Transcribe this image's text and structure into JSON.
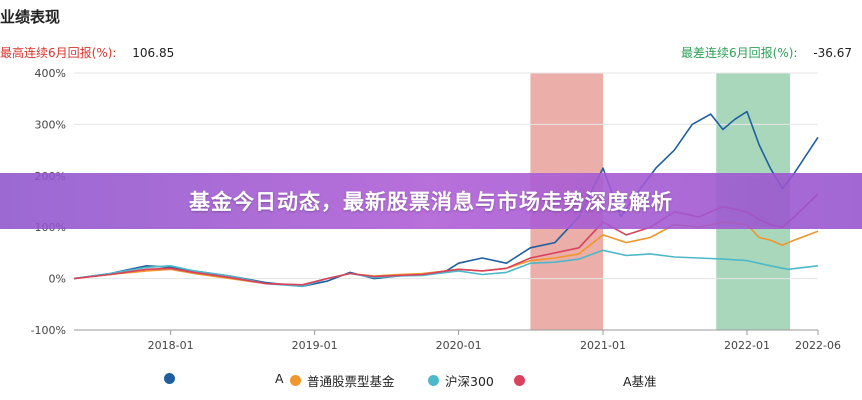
{
  "chart_data": {
    "type": "line",
    "title": "业绩表现",
    "ylim": [
      -100,
      400
    ],
    "y_ticks": [
      "400%",
      "300%",
      "200%",
      "100%",
      "0%",
      "-100%"
    ],
    "y_tick_values": [
      400,
      300,
      200,
      100,
      0,
      -100
    ],
    "x_ticks": [
      "2018-01",
      "2019-01",
      "2020-01",
      "2021-01",
      "2022-01",
      "2022-06"
    ],
    "x_tick_values": [
      "2018-01-01",
      "2019-01-01",
      "2020-01-01",
      "2021-01-01",
      "2022-01-01",
      "2022-06-30"
    ],
    "xlim": [
      "2017-05-01",
      "2022-06-30"
    ],
    "shaded_ranges": [
      {
        "from": "2020-07-01",
        "to": "2021-01-01",
        "color": "#e9a59e"
      },
      {
        "from": "2021-10-15",
        "to": "2022-04-20",
        "color": "#9fd3b5"
      }
    ],
    "grid": true,
    "legend_position": "bottom",
    "series": [
      {
        "name": "",
        "label_fragment": "A",
        "color": "#1f5fa0",
        "points": [
          [
            "2017-05-01",
            0
          ],
          [
            "2017-08-01",
            10
          ],
          [
            "2017-11-01",
            25
          ],
          [
            "2018-01-01",
            22
          ],
          [
            "2018-03-01",
            15
          ],
          [
            "2018-06-01",
            5
          ],
          [
            "2018-09-01",
            -8
          ],
          [
            "2018-12-01",
            -15
          ],
          [
            "2019-02-01",
            -5
          ],
          [
            "2019-04-01",
            12
          ],
          [
            "2019-06-01",
            0
          ],
          [
            "2019-08-01",
            5
          ],
          [
            "2019-10-01",
            8
          ],
          [
            "2019-12-01",
            15
          ],
          [
            "2020-01-01",
            30
          ],
          [
            "2020-03-01",
            40
          ],
          [
            "2020-05-01",
            30
          ],
          [
            "2020-07-01",
            60
          ],
          [
            "2020-09-01",
            70
          ],
          [
            "2020-11-01",
            120
          ],
          [
            "2021-01-01",
            215
          ],
          [
            "2021-02-15",
            120
          ],
          [
            "2021-04-01",
            170
          ],
          [
            "2021-05-15",
            215
          ],
          [
            "2021-07-01",
            250
          ],
          [
            "2021-08-15",
            300
          ],
          [
            "2021-10-01",
            320
          ],
          [
            "2021-11-01",
            290
          ],
          [
            "2021-12-01",
            310
          ],
          [
            "2022-01-01",
            325
          ],
          [
            "2022-02-01",
            260
          ],
          [
            "2022-03-01",
            215
          ],
          [
            "2022-04-01",
            175
          ],
          [
            "2022-05-01",
            205
          ],
          [
            "2022-06-30",
            275
          ]
        ]
      },
      {
        "name": "普通股票型基金",
        "color": "#f0962c",
        "points": [
          [
            "2017-05-01",
            0
          ],
          [
            "2017-08-01",
            8
          ],
          [
            "2017-11-01",
            15
          ],
          [
            "2018-01-01",
            18
          ],
          [
            "2018-03-01",
            10
          ],
          [
            "2018-06-01",
            0
          ],
          [
            "2018-09-01",
            -10
          ],
          [
            "2018-12-01",
            -12
          ],
          [
            "2019-02-01",
            0
          ],
          [
            "2019-04-01",
            10
          ],
          [
            "2019-06-01",
            5
          ],
          [
            "2019-08-01",
            8
          ],
          [
            "2019-10-01",
            10
          ],
          [
            "2019-12-01",
            15
          ],
          [
            "2020-01-01",
            18
          ],
          [
            "2020-03-01",
            15
          ],
          [
            "2020-05-01",
            20
          ],
          [
            "2020-07-01",
            35
          ],
          [
            "2020-09-01",
            40
          ],
          [
            "2020-11-01",
            48
          ],
          [
            "2021-01-01",
            85
          ],
          [
            "2021-03-01",
            70
          ],
          [
            "2021-05-01",
            80
          ],
          [
            "2021-07-01",
            105
          ],
          [
            "2021-09-01",
            100
          ],
          [
            "2021-11-01",
            110
          ],
          [
            "2022-01-01",
            105
          ],
          [
            "2022-02-01",
            80
          ],
          [
            "2022-03-01",
            75
          ],
          [
            "2022-04-01",
            65
          ],
          [
            "2022-05-01",
            75
          ],
          [
            "2022-06-30",
            92
          ]
        ]
      },
      {
        "name": "沪深300",
        "color": "#4db8c9",
        "points": [
          [
            "2017-05-01",
            0
          ],
          [
            "2017-08-01",
            10
          ],
          [
            "2017-11-01",
            22
          ],
          [
            "2018-01-01",
            25
          ],
          [
            "2018-03-01",
            15
          ],
          [
            "2018-06-01",
            5
          ],
          [
            "2018-09-01",
            -10
          ],
          [
            "2018-12-01",
            -15
          ],
          [
            "2019-02-01",
            0
          ],
          [
            "2019-04-01",
            10
          ],
          [
            "2019-06-01",
            2
          ],
          [
            "2019-08-01",
            5
          ],
          [
            "2019-10-01",
            6
          ],
          [
            "2019-12-01",
            12
          ],
          [
            "2020-01-01",
            15
          ],
          [
            "2020-03-01",
            8
          ],
          [
            "2020-05-01",
            12
          ],
          [
            "2020-07-01",
            30
          ],
          [
            "2020-09-01",
            32
          ],
          [
            "2020-11-01",
            38
          ],
          [
            "2021-01-01",
            55
          ],
          [
            "2021-03-01",
            45
          ],
          [
            "2021-05-01",
            48
          ],
          [
            "2021-07-01",
            42
          ],
          [
            "2021-09-01",
            40
          ],
          [
            "2021-11-01",
            38
          ],
          [
            "2022-01-01",
            35
          ],
          [
            "2022-03-01",
            25
          ],
          [
            "2022-04-15",
            18
          ],
          [
            "2022-06-30",
            25
          ]
        ]
      },
      {
        "name": "",
        "label_fragment": "A基准",
        "color": "#d9415f",
        "points": [
          [
            "2017-05-01",
            0
          ],
          [
            "2017-08-01",
            8
          ],
          [
            "2017-11-01",
            18
          ],
          [
            "2018-01-01",
            20
          ],
          [
            "2018-03-01",
            12
          ],
          [
            "2018-06-01",
            2
          ],
          [
            "2018-09-01",
            -10
          ],
          [
            "2018-12-01",
            -12
          ],
          [
            "2019-02-01",
            0
          ],
          [
            "2019-04-01",
            10
          ],
          [
            "2019-06-01",
            4
          ],
          [
            "2019-08-01",
            6
          ],
          [
            "2019-10-01",
            8
          ],
          [
            "2019-12-01",
            15
          ],
          [
            "2020-01-01",
            18
          ],
          [
            "2020-03-01",
            15
          ],
          [
            "2020-05-01",
            20
          ],
          [
            "2020-07-01",
            40
          ],
          [
            "2020-09-01",
            50
          ],
          [
            "2020-11-01",
            60
          ],
          [
            "2021-01-01",
            110
          ],
          [
            "2021-03-01",
            85
          ],
          [
            "2021-05-01",
            100
          ],
          [
            "2021-07-01",
            130
          ],
          [
            "2021-09-01",
            120
          ],
          [
            "2021-11-01",
            140
          ],
          [
            "2022-01-01",
            130
          ],
          [
            "2022-02-01",
            115
          ],
          [
            "2022-03-01",
            105
          ],
          [
            "2022-04-01",
            100
          ],
          [
            "2022-05-01",
            120
          ],
          [
            "2022-06-30",
            165
          ]
        ]
      }
    ]
  },
  "header": {
    "title": "业绩表现",
    "max_gain_label": "最高连续6月回报(%):",
    "max_gain_value": "106.85",
    "max_loss_label": "最差连续6月回报(%):",
    "max_loss_value": "-36.67"
  },
  "legend": [
    {
      "label": "A",
      "color": "#1f5fa0"
    },
    {
      "label": "普通股票型基金",
      "color": "#f0962c"
    },
    {
      "label": "沪深300",
      "color": "#4db8c9"
    },
    {
      "label": "A基准",
      "color": "#d9415f"
    }
  ],
  "banner": {
    "text": "基金今日动态，最新股票消息与市场走势深度解析"
  }
}
